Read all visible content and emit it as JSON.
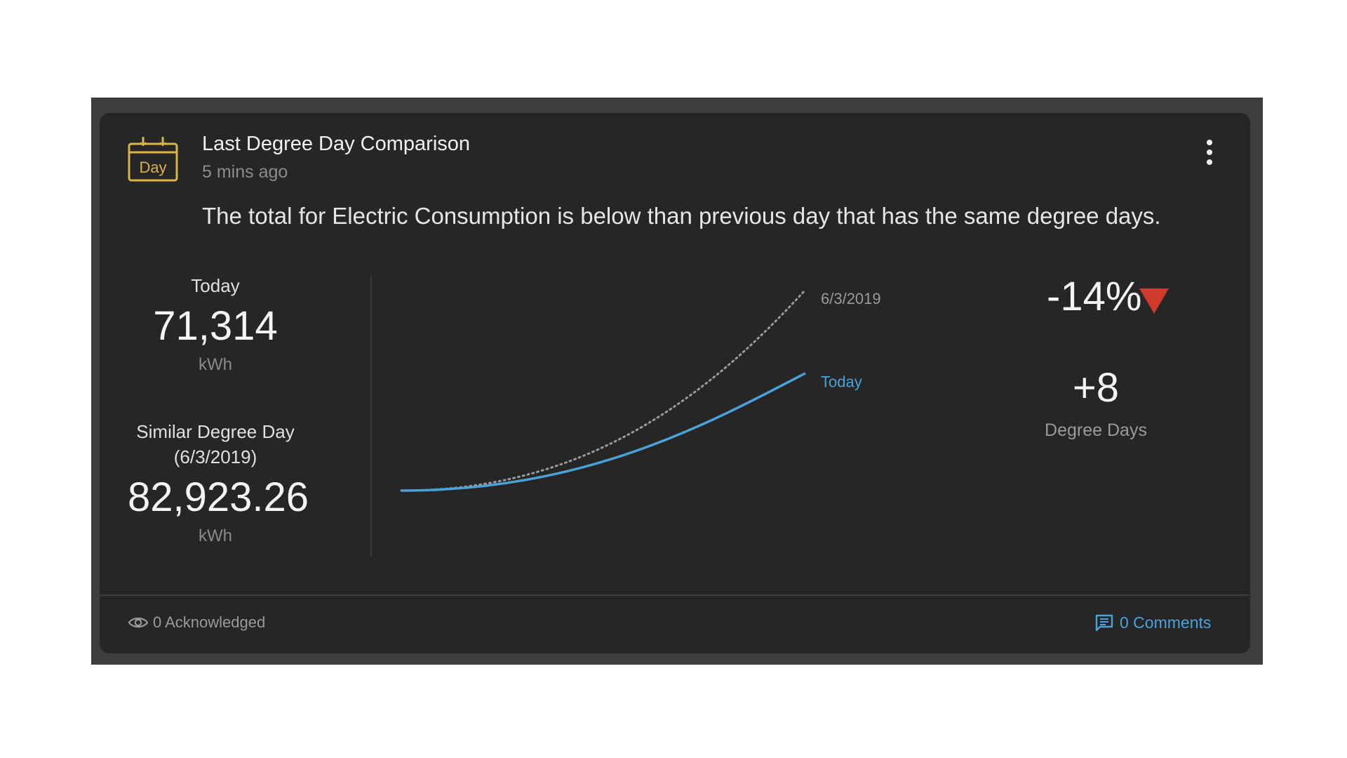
{
  "card": {
    "icon_text": "Day",
    "title": "Last Degree Day Comparison",
    "timestamp": "5 mins ago",
    "message": "The total for Electric Consumption is below than previous day that has the same degree days."
  },
  "stats": {
    "today_label": "Today",
    "today_value": "71,314",
    "today_unit": "kWh",
    "similar_label_line1": "Similar Degree Day",
    "similar_label_line2": "(6/3/2019)",
    "similar_value": "82,923.26",
    "similar_unit": "kWh"
  },
  "comparison": {
    "percent_change": "-14%",
    "degree_days_value": "+8",
    "degree_days_label": "Degree Days",
    "down_color": "#d0392b"
  },
  "chart_data": {
    "type": "line",
    "series": [
      {
        "name": "6/3/2019",
        "style": "dotted",
        "color": "#9a9a9a",
        "end_value": 82923.26
      },
      {
        "name": "Today",
        "style": "solid",
        "color": "#4aa3d8",
        "end_value": 71314
      }
    ],
    "grid": false
  },
  "footer": {
    "acknowledged": "0 Acknowledged",
    "comments": "0 Comments",
    "accent_color": "#4aa3d8"
  },
  "icons": [
    "calendar-day-icon",
    "more-vert-icon",
    "triangle-down-icon",
    "eye-icon",
    "comment-icon"
  ]
}
